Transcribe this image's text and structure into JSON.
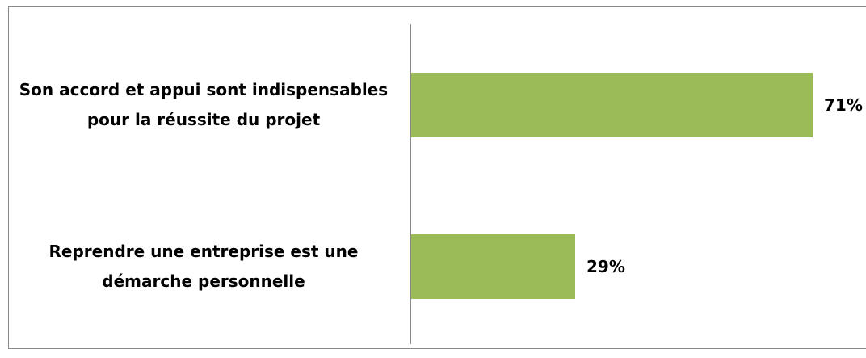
{
  "chart_data": {
    "type": "bar",
    "orientation": "horizontal",
    "categories": [
      "Son accord et appui sont indispensables pour la réussite du projet",
      "Reprendre une entreprise est une démarche personnelle"
    ],
    "values": [
      71,
      29
    ],
    "value_labels": [
      "71%",
      "29%"
    ],
    "color": "#9bbb59"
  }
}
